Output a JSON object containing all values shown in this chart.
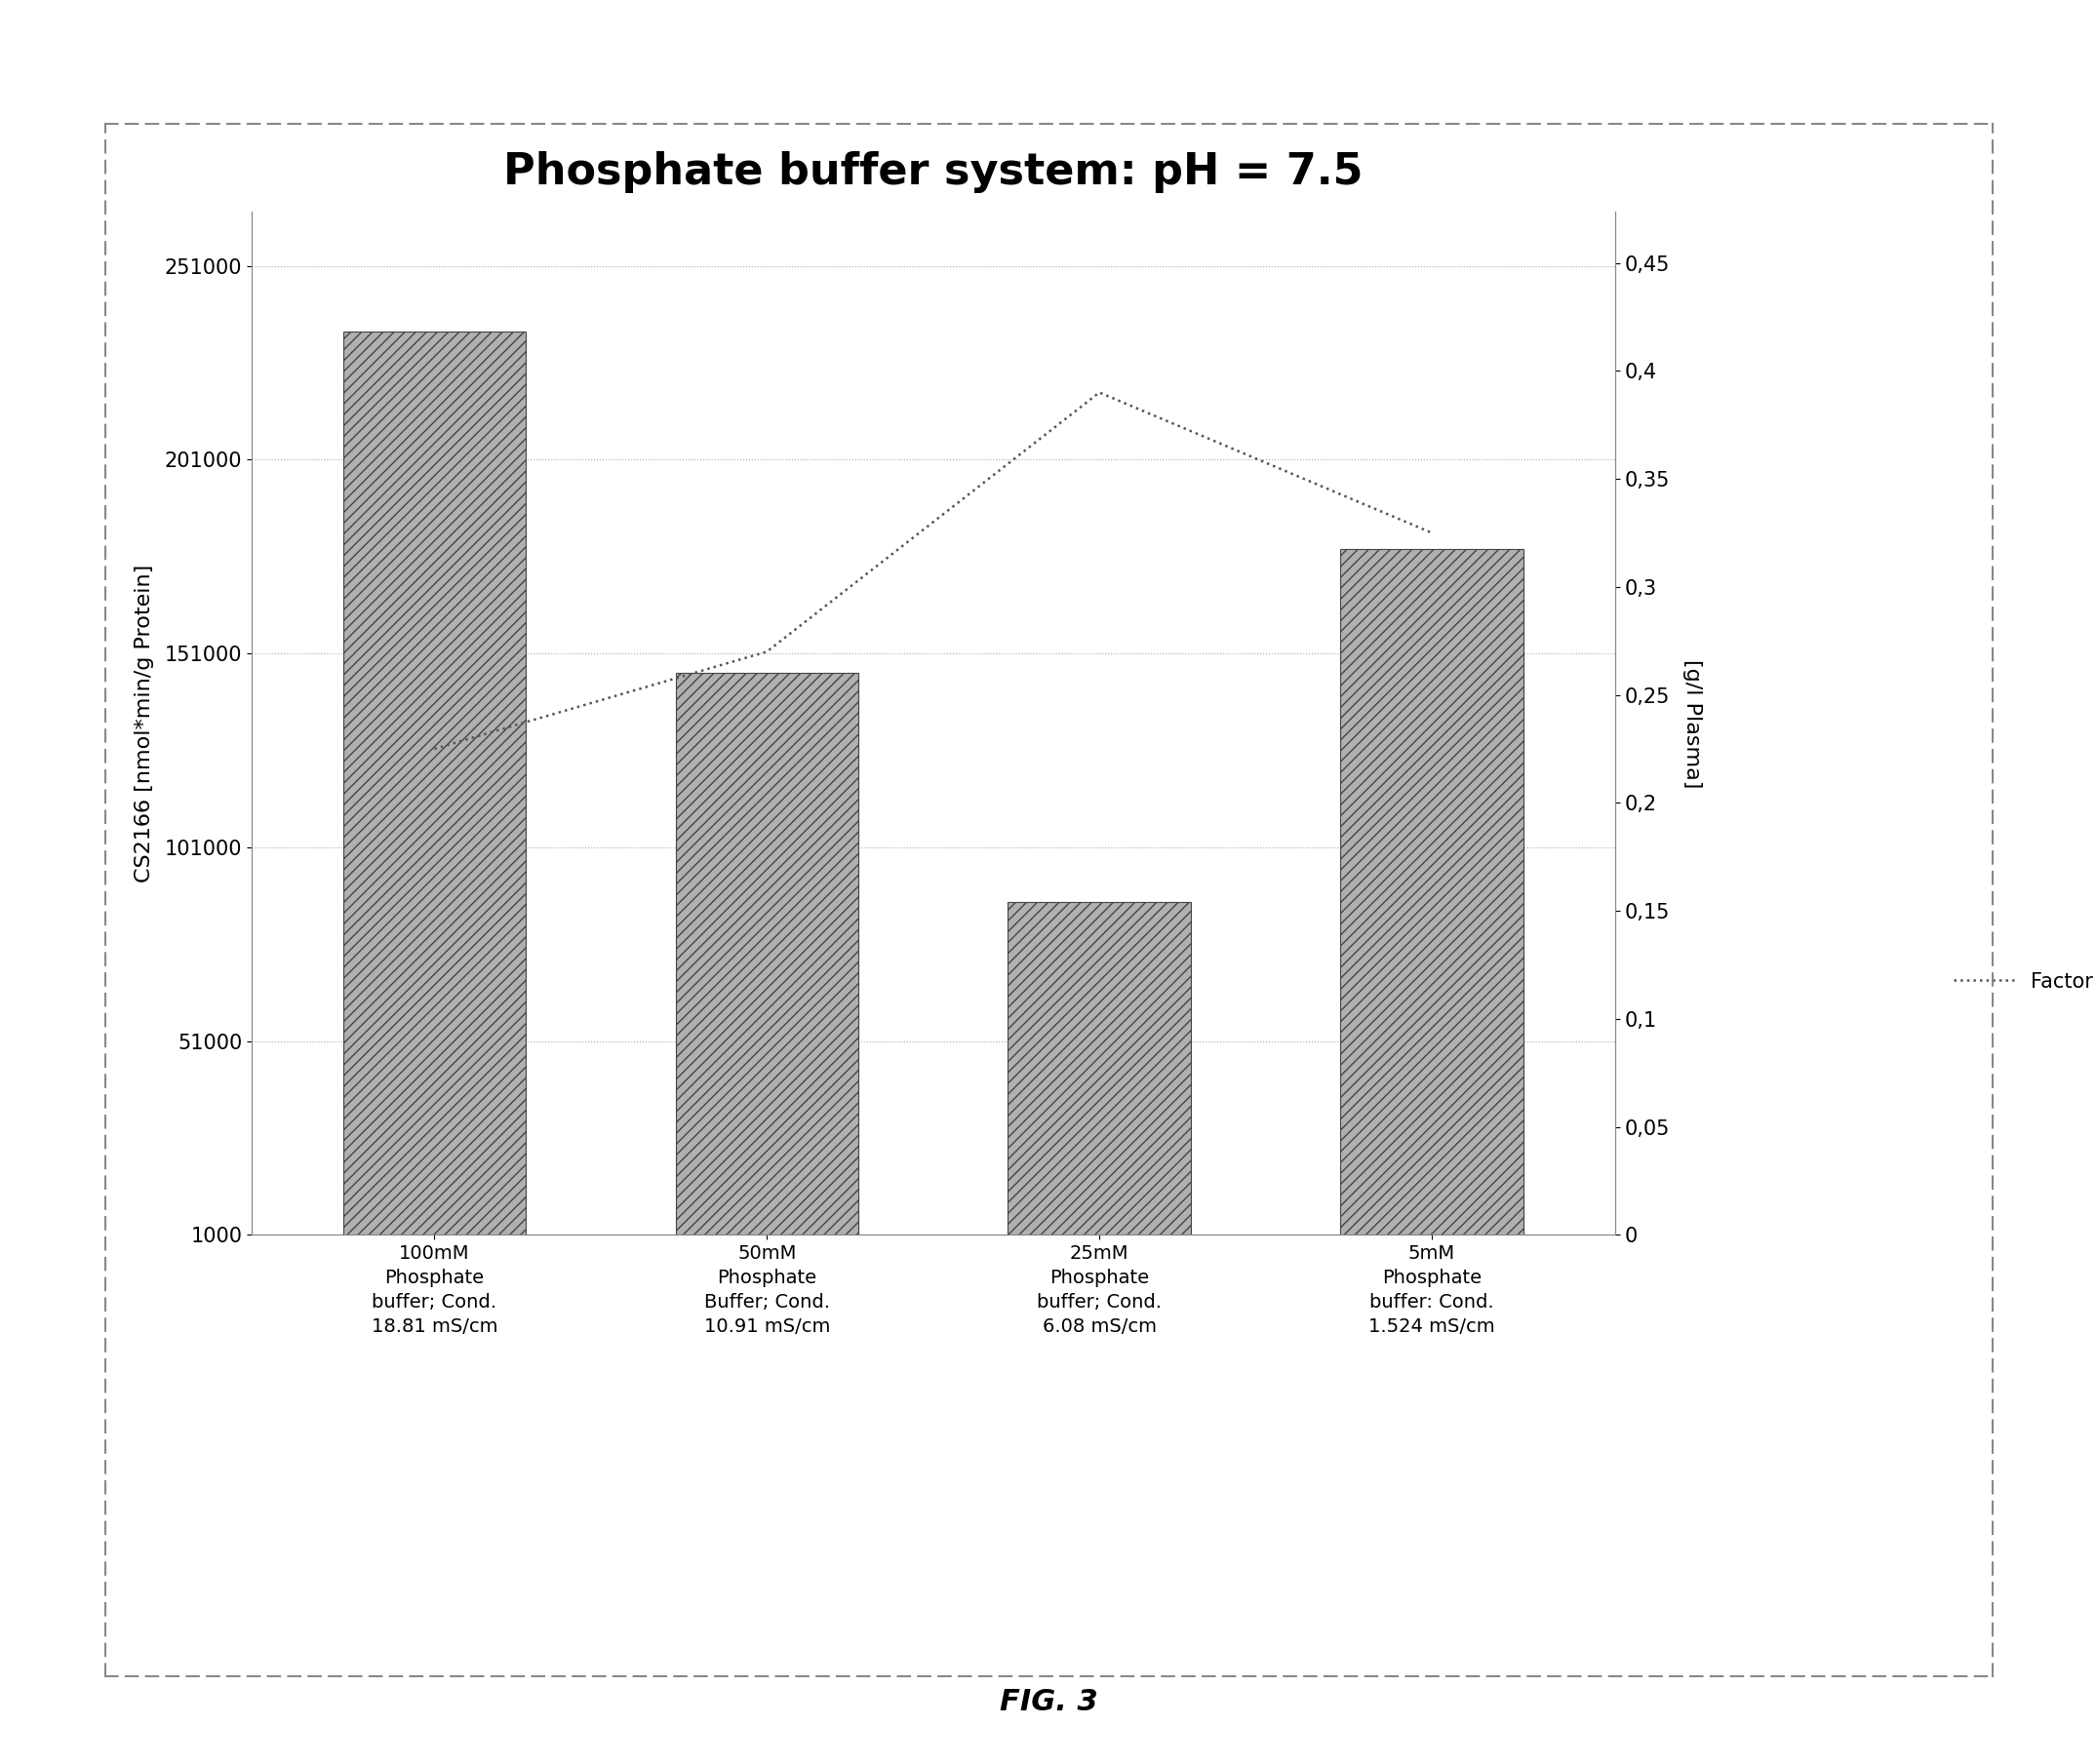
{
  "title": "Phosphate buffer system: pH = 7.5",
  "categories": [
    "100mM\nPhosphate\nbuffer; Cond.\n18.81 mS/cm",
    "50mM\nPhosphate\nBuffer; Cond.\n10.91 mS/cm",
    "25mM\nPhosphate\nbuffer; Cond.\n6.08 mS/cm",
    "5mM\nPhosphate\nbuffer: Cond.\n1.524 mS/cm"
  ],
  "bar_values": [
    234000,
    146000,
    87000,
    178000
  ],
  "line_values": [
    0.225,
    0.27,
    0.39,
    0.325
  ],
  "bar_color": "#b0b0b0",
  "bar_hatch": "///",
  "line_color": "#555555",
  "ylabel_left": "CS2166 [nmol*min/g Protein]",
  "ylabel_right": "[g/l Plasma]",
  "legend_label": "Factor H",
  "yticks_left": [
    1000,
    51000,
    101000,
    151000,
    201000,
    251000
  ],
  "yticks_right": [
    0,
    0.05,
    0.1,
    0.15,
    0.2,
    0.25,
    0.3,
    0.35,
    0.4,
    0.45
  ],
  "ylim_left": [
    1000,
    265000
  ],
  "ylim_right": [
    0,
    0.4737
  ],
  "fig_caption": "FIG. 3",
  "background_color": "#ffffff",
  "grid_color": "#aaaaaa",
  "title_fontsize": 32,
  "axis_label_fontsize": 16,
  "tick_fontsize": 15,
  "caption_fontsize": 22,
  "legend_fontsize": 15
}
